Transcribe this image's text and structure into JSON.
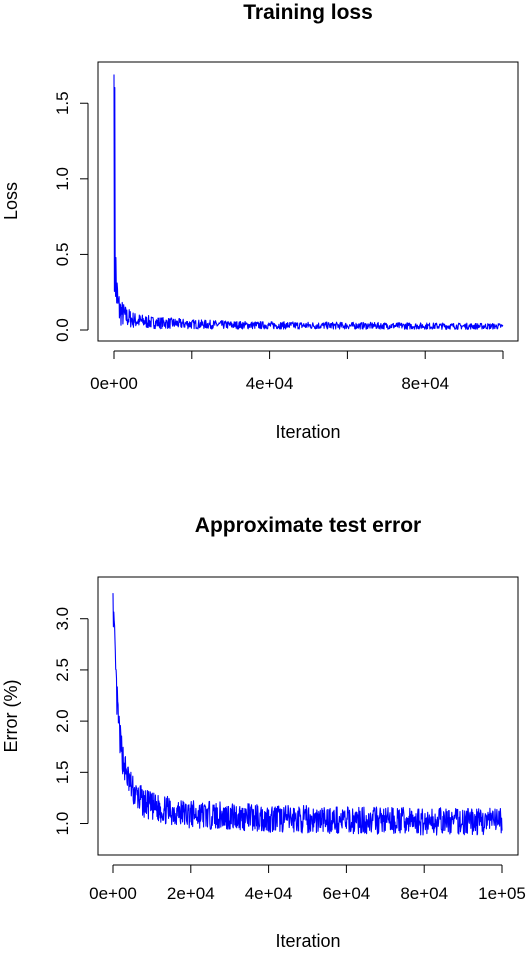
{
  "colors": {
    "series": "#0000ff",
    "axis": "#000000",
    "background": "#ffffff"
  },
  "chart_data": [
    {
      "type": "line",
      "title": "Training loss",
      "xlabel": "Iteration",
      "ylabel": "Loss",
      "xlim": [
        0,
        100000
      ],
      "ylim": [
        0,
        1.7
      ],
      "x_ticks": [
        0,
        20000,
        40000,
        60000,
        80000,
        100000
      ],
      "x_tick_labels": [
        "0e+00",
        "",
        "4e+04",
        "",
        "8e+04",
        ""
      ],
      "y_ticks": [
        0,
        0.5,
        1.0,
        1.5
      ],
      "y_tick_labels": [
        "0.0",
        "0.5",
        "1.0",
        "1.5"
      ],
      "grid": false,
      "legend": "none",
      "series": [
        {
          "x": [
            0,
            300,
            600,
            1000,
            1500,
            2000,
            2500,
            3000,
            4000,
            5000,
            6000,
            8000,
            10000,
            15000,
            20000,
            30000,
            40000,
            50000,
            60000,
            70000,
            80000,
            90000,
            100000
          ],
          "values": [
            1.69,
            0.45,
            0.25,
            0.15,
            0.12,
            0.1,
            0.09,
            0.08,
            0.07,
            0.06,
            0.055,
            0.05,
            0.045,
            0.04,
            0.035,
            0.03,
            0.028,
            0.027,
            0.026,
            0.025,
            0.024,
            0.023,
            0.022
          ]
        }
      ]
    },
    {
      "type": "line",
      "title": "Approximate test error",
      "xlabel": "Iteration",
      "ylabel": "Error (%)",
      "xlim": [
        0,
        100000
      ],
      "ylim": [
        0.8,
        3.3
      ],
      "x_ticks": [
        0,
        20000,
        40000,
        60000,
        80000,
        100000
      ],
      "x_tick_labels": [
        "0e+00",
        "2e+04",
        "4e+04",
        "6e+04",
        "8e+04",
        "1e+05"
      ],
      "y_ticks": [
        1.0,
        1.5,
        2.0,
        2.5,
        3.0
      ],
      "y_tick_labels": [
        "1.0",
        "1.5",
        "2.0",
        "2.5",
        "3.0"
      ],
      "grid": false,
      "legend": "none",
      "series": [
        {
          "x": [
            0,
            300,
            600,
            1000,
            1500,
            2000,
            3000,
            4000,
            5000,
            6000,
            8000,
            10000,
            15000,
            20000,
            30000,
            40000,
            50000,
            60000,
            70000,
            80000,
            90000,
            100000
          ],
          "values": [
            3.25,
            2.85,
            2.55,
            2.2,
            1.95,
            1.75,
            1.55,
            1.42,
            1.33,
            1.27,
            1.2,
            1.16,
            1.12,
            1.09,
            1.07,
            1.05,
            1.04,
            1.03,
            1.03,
            1.02,
            1.02,
            1.02
          ]
        }
      ]
    }
  ]
}
